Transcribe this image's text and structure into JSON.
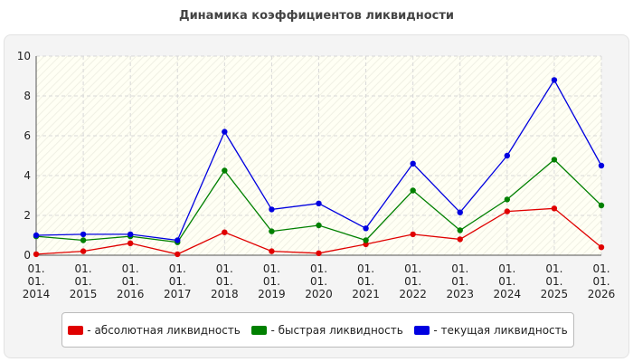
{
  "chart_data": {
    "type": "line",
    "title": "Динамика коэффициентов ликвидности",
    "categories": [
      "01. 01. 2014",
      "01. 01. 2015",
      "01. 01. 2016",
      "01. 01. 2017",
      "01. 01. 2018",
      "01. 01. 2019",
      "01. 01. 2020",
      "01. 01. 2021",
      "01. 01. 2022",
      "01. 01. 2023",
      "01. 01. 2024",
      "01. 01. 2025",
      "01. 01. 2026"
    ],
    "series": [
      {
        "name": "- абсолютная ликвидность",
        "color": "#e00000",
        "values": [
          0.05,
          0.2,
          0.6,
          0.05,
          1.15,
          0.2,
          0.1,
          0.55,
          1.05,
          0.8,
          2.2,
          2.35,
          0.4
        ]
      },
      {
        "name": "- быстрая ликвидность",
        "color": "#008000",
        "values": [
          0.95,
          0.75,
          0.95,
          0.65,
          4.25,
          1.2,
          1.5,
          0.75,
          3.25,
          1.25,
          2.8,
          4.8,
          2.5
        ]
      },
      {
        "name": "- текущая ликвидность",
        "color": "#0000e0",
        "values": [
          1.0,
          1.05,
          1.05,
          0.75,
          6.2,
          2.3,
          2.6,
          1.35,
          4.6,
          2.15,
          5.0,
          8.8,
          4.5
        ]
      }
    ],
    "ylim": [
      0,
      10
    ],
    "yticks": [
      0,
      2,
      4,
      6,
      8,
      10
    ],
    "grid": true
  }
}
